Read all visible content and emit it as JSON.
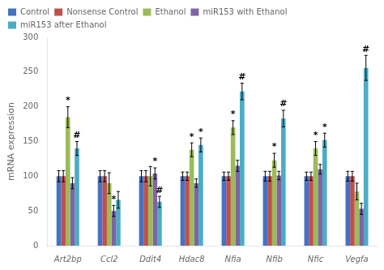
{
  "chart_data": {
    "type": "bar",
    "categories": [
      "Art2bp",
      "Ccl2",
      "Ddit4",
      "Hdac8",
      "Nfia",
      "Nfib",
      "Nfic",
      "Vegfa"
    ],
    "series": [
      {
        "name": "Control",
        "color": "#4472C4",
        "values": [
          100,
          100,
          100,
          100,
          100,
          100,
          100,
          100
        ],
        "errors": [
          8,
          8,
          8,
          6,
          6,
          7,
          6,
          7
        ]
      },
      {
        "name": "Nonsense Control",
        "color": "#C0504D",
        "values": [
          100,
          100,
          100,
          100,
          100,
          100,
          100,
          100
        ],
        "errors": [
          8,
          8,
          8,
          6,
          6,
          7,
          6,
          7
        ]
      },
      {
        "name": "Ethanol",
        "color": "#9BBB59",
        "values": [
          185,
          90,
          100,
          138,
          170,
          123,
          140,
          78
        ],
        "errors": [
          15,
          15,
          14,
          10,
          10,
          10,
          10,
          12
        ]
      },
      {
        "name": "miR153 with Ethanol",
        "color": "#8064A2",
        "values": [
          90,
          50,
          104,
          90,
          115,
          101,
          110,
          53
        ],
        "errors": [
          8,
          8,
          8,
          6,
          8,
          6,
          7,
          8
        ]
      },
      {
        "name": "miR153 after Ethanol",
        "color": "#4BACC6",
        "values": [
          140,
          66,
          63,
          145,
          222,
          183,
          152,
          256
        ],
        "errors": [
          10,
          12,
          8,
          10,
          12,
          12,
          10,
          18
        ]
      }
    ],
    "annotations": [
      {
        "category": "Art2bp",
        "series": "Ethanol",
        "text": "*"
      },
      {
        "category": "Art2bp",
        "series": "miR153 after Ethanol",
        "text": "#"
      },
      {
        "category": "Ccl2",
        "series": "miR153 with Ethanol",
        "text": "*"
      },
      {
        "category": "Ddit4",
        "series": "miR153 with Ethanol",
        "text": "*"
      },
      {
        "category": "Ddit4",
        "series": "miR153 after Ethanol",
        "text": "#"
      },
      {
        "category": "Hdac8",
        "series": "Ethanol",
        "text": "*"
      },
      {
        "category": "Hdac8",
        "series": "miR153 after Ethanol",
        "text": "*"
      },
      {
        "category": "Nfia",
        "series": "Ethanol",
        "text": "*"
      },
      {
        "category": "Nfia",
        "series": "miR153 after Ethanol",
        "text": "#"
      },
      {
        "category": "Nfib",
        "series": "Ethanol",
        "text": "*"
      },
      {
        "category": "Nfib",
        "series": "miR153 after Ethanol",
        "text": "#"
      },
      {
        "category": "Nfic",
        "series": "Ethanol",
        "text": "*"
      },
      {
        "category": "Nfic",
        "series": "miR153 after Ethanol",
        "text": "*"
      },
      {
        "category": "Vegfa",
        "series": "miR153 after Ethanol",
        "text": "#"
      }
    ],
    "ylabel": "mRNA expression",
    "ylim": [
      0,
      300
    ],
    "yticks": [
      0,
      50,
      100,
      150,
      200,
      250,
      300
    ],
    "grid": false,
    "legend": "upper left"
  }
}
